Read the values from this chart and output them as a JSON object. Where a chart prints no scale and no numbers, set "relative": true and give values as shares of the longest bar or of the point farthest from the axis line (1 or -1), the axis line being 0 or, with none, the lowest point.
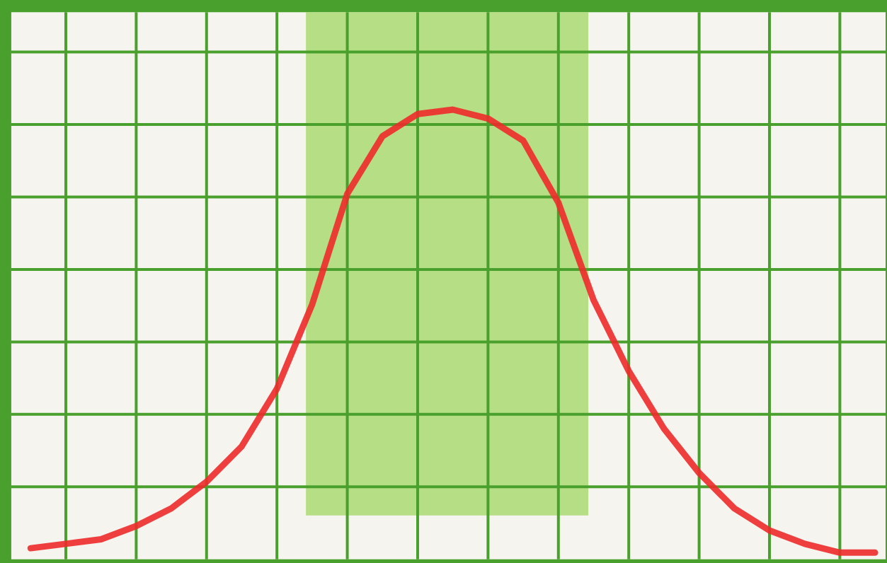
{
  "chart_data": {
    "type": "line",
    "relative": true,
    "categories": [
      null,
      null,
      null,
      null,
      null,
      null,
      null,
      null,
      null,
      null,
      null,
      null,
      null,
      null,
      null,
      null,
      null,
      null,
      null,
      null,
      null,
      null,
      null,
      null,
      null
    ],
    "series": [
      {
        "color": "#ee2a2a",
        "values": [
          0.01,
          0.02,
          0.03,
          0.06,
          0.1,
          0.16,
          0.24,
          0.37,
          0.56,
          0.81,
          0.94,
          0.99,
          1,
          0.98,
          0.93,
          0.79,
          0.57,
          0.41,
          0.28,
          0.18,
          0.1,
          0.05,
          0.02,
          0.0,
          0
        ]
      }
    ],
    "grid": true,
    "marker": "none",
    "line_style": "solid"
  }
}
